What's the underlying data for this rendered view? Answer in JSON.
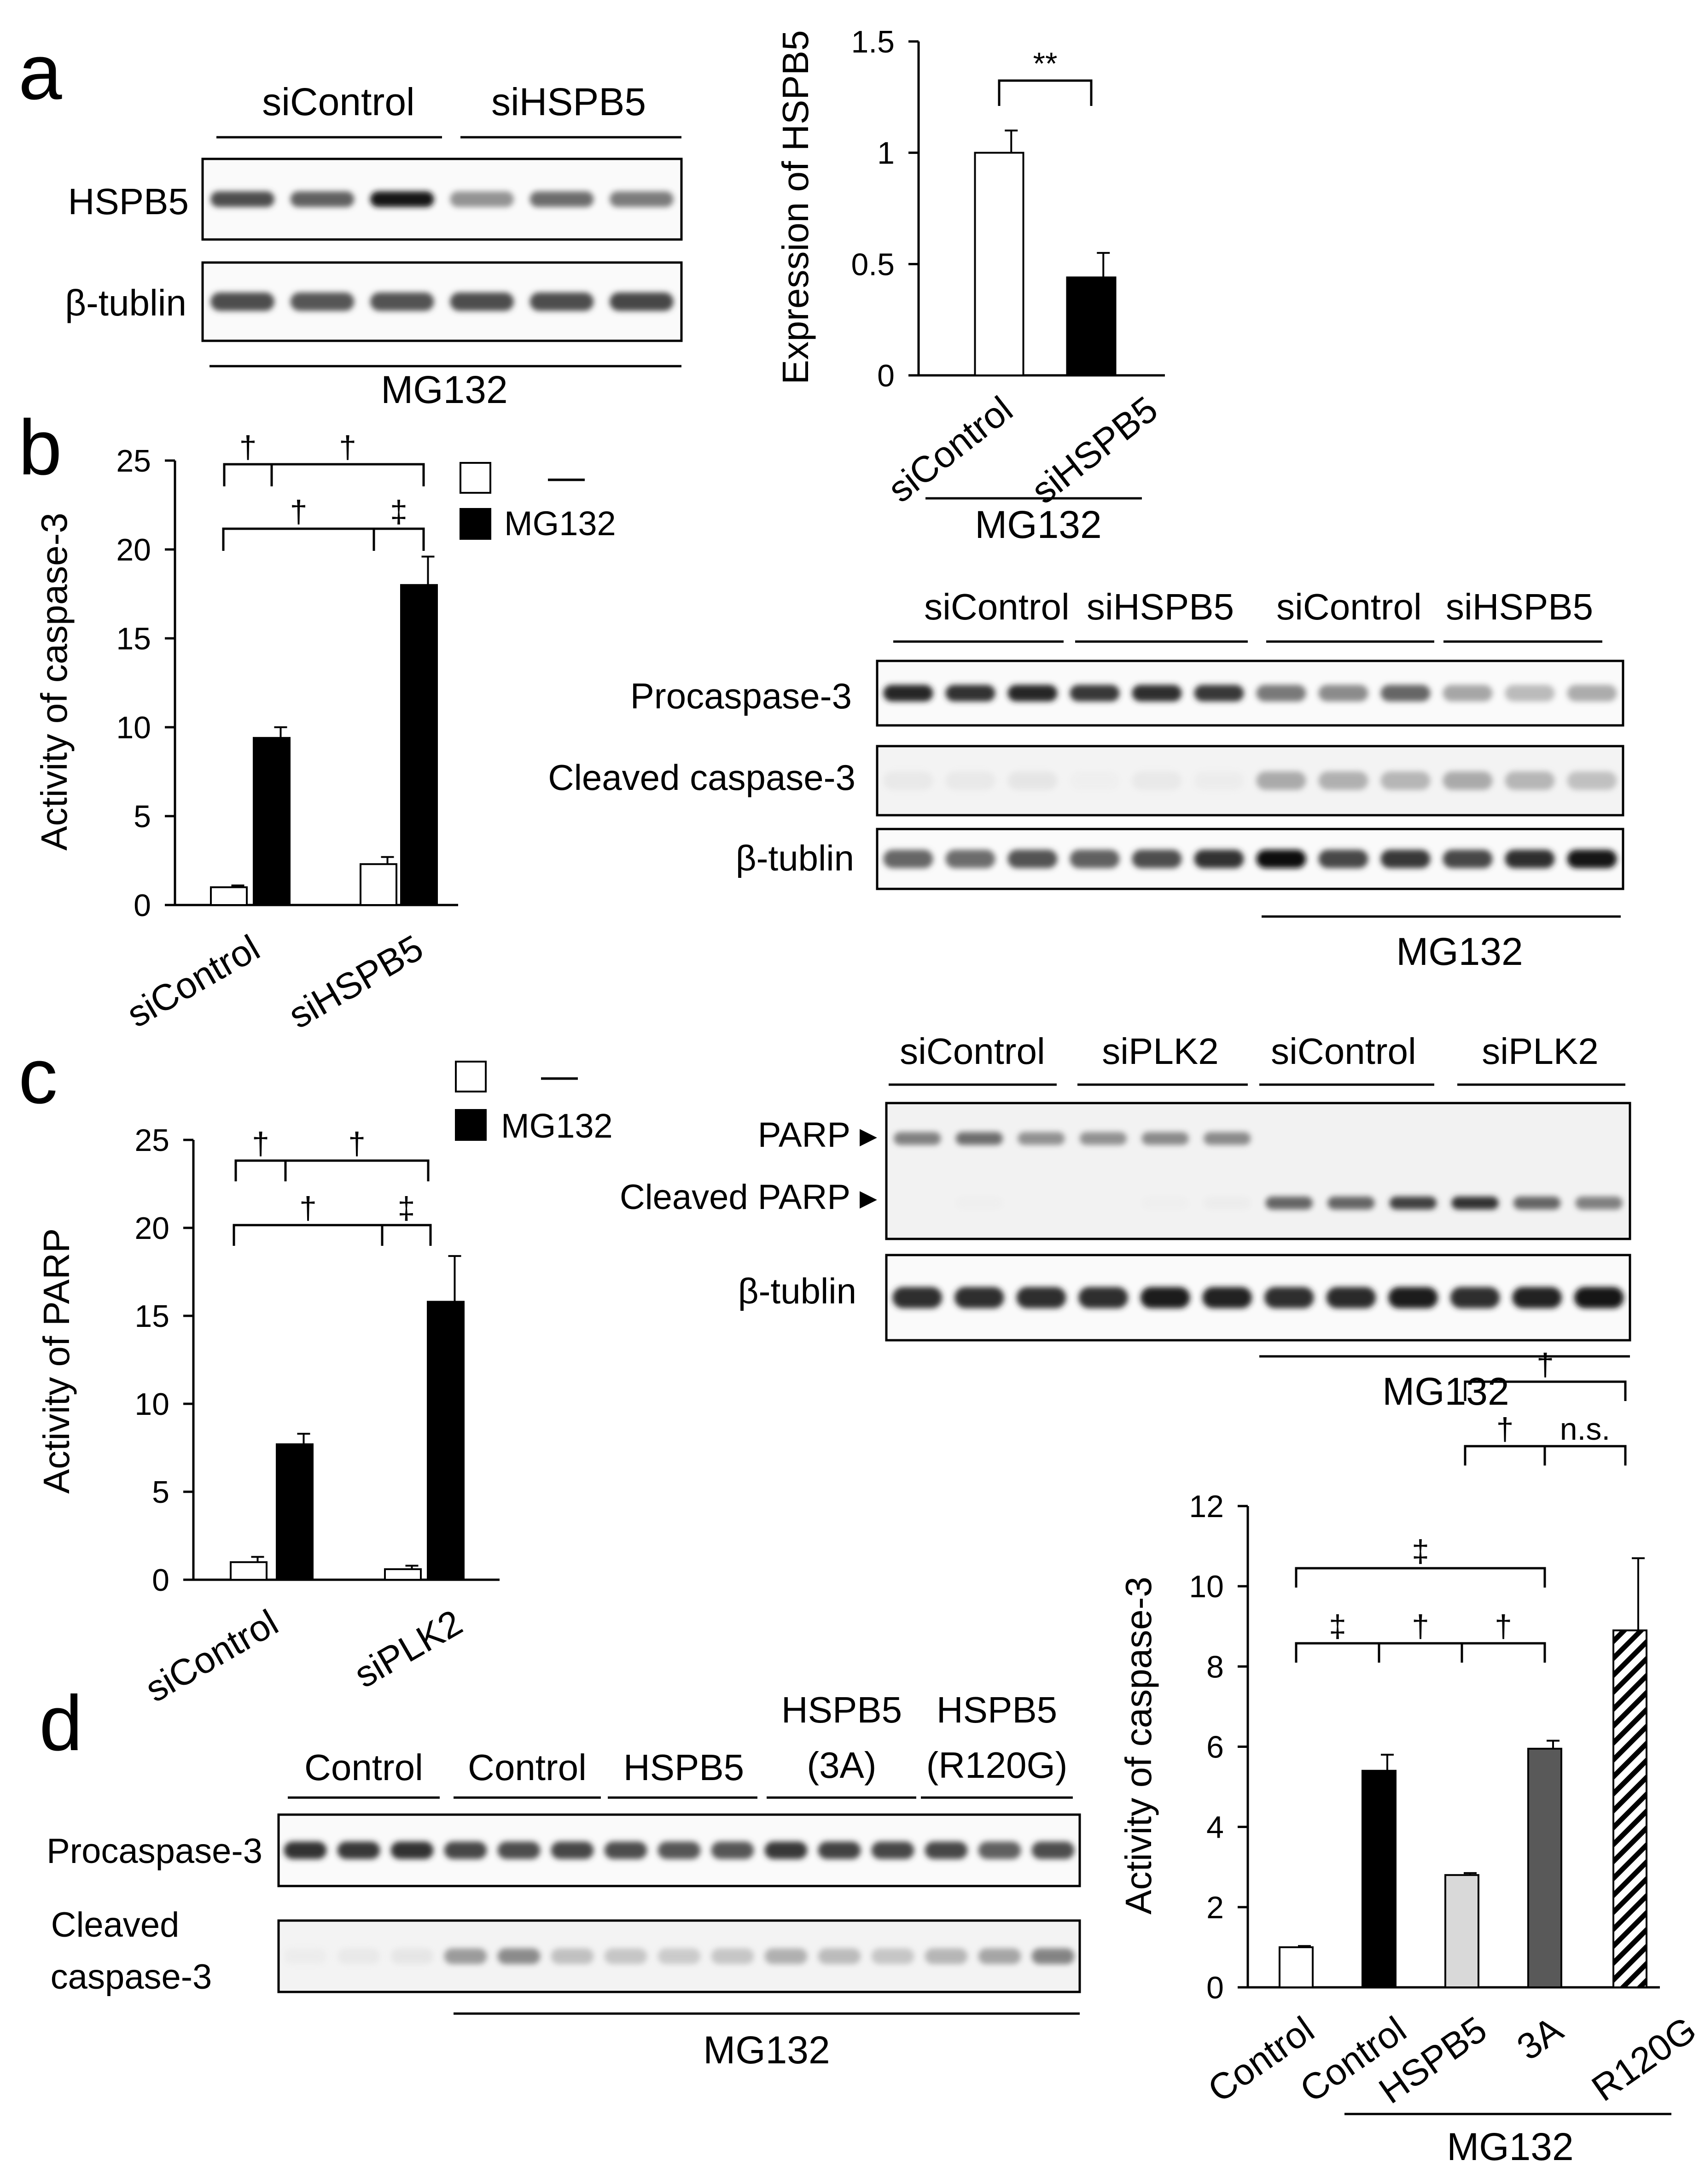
{
  "panels": {
    "a": {
      "letter": "a",
      "blot": {
        "group_labels": [
          "siControl",
          "siHSPB5"
        ],
        "rows": [
          "HSPB5",
          "β-tublin"
        ],
        "treatment": "MG132",
        "row_intensity": [
          [
            0.7,
            0.62,
            0.92,
            0.48,
            0.58,
            0.54
          ],
          [
            0.7,
            0.66,
            0.68,
            0.7,
            0.7,
            0.72
          ]
        ]
      },
      "chart": {
        "ylabel": "Expression of HSPB5",
        "categories": [
          "siControl",
          "siHSPB5"
        ],
        "treatment": "MG132",
        "significance": "**"
      }
    },
    "b": {
      "letter": "b",
      "chart": {
        "ylabel": "Activity of caspase-3",
        "categories": [
          "siControl",
          "siHSPB5"
        ],
        "legend": [
          "—",
          "MG132"
        ],
        "significance": [
          "†",
          "†",
          "†",
          "‡"
        ]
      },
      "blot": {
        "group_labels": [
          "siControl",
          "siHSPB5",
          "siControl",
          "siHSPB5"
        ],
        "rows": [
          "Procaspase-3",
          "Cleaved caspase-3",
          "β-tublin"
        ],
        "treatment": "MG132",
        "row_intensity": [
          [
            0.85,
            0.8,
            0.85,
            0.78,
            0.82,
            0.78,
            0.55,
            0.5,
            0.6,
            0.42,
            0.35,
            0.4
          ],
          [
            0.12,
            0.12,
            0.14,
            0.08,
            0.12,
            0.1,
            0.4,
            0.38,
            0.36,
            0.4,
            0.36,
            0.32
          ],
          [
            0.6,
            0.58,
            0.68,
            0.62,
            0.7,
            0.8,
            0.95,
            0.72,
            0.78,
            0.72,
            0.82,
            0.92
          ]
        ]
      }
    },
    "c": {
      "letter": "c",
      "chart": {
        "ylabel": "Activity of PARP",
        "categories": [
          "siControl",
          "siPLK2"
        ],
        "legend": [
          "—",
          "MG132"
        ],
        "significance": [
          "†",
          "†",
          "†",
          "‡"
        ]
      },
      "blot": {
        "group_labels": [
          "siControl",
          "siPLK2",
          "siControl",
          "siPLK2"
        ],
        "rows": [
          "PARP ▸",
          "Cleaved PARP ▸",
          "β-tublin"
        ],
        "treatment": "MG132",
        "row_intensity": [
          [
            0.55,
            0.6,
            0.5,
            0.5,
            0.52,
            0.52,
            0.05,
            0.05,
            0.05,
            0.05,
            0.05,
            0.05
          ],
          [
            0.05,
            0.08,
            0.05,
            0.05,
            0.08,
            0.1,
            0.62,
            0.62,
            0.75,
            0.8,
            0.62,
            0.55
          ],
          [
            0.82,
            0.82,
            0.82,
            0.82,
            0.88,
            0.86,
            0.82,
            0.84,
            0.88,
            0.82,
            0.86,
            0.92
          ]
        ]
      }
    },
    "d": {
      "letter": "d",
      "blot": {
        "group_labels": [
          "Control",
          "Control",
          "HSPB5",
          "HSPB5\n(3A)",
          "HSPB5\n(R120G)"
        ],
        "rows": [
          "Procaspase-3",
          "Cleaved\ncaspase-3"
        ],
        "treatment": "MG132",
        "row_intensity": [
          [
            0.8,
            0.78,
            0.8,
            0.72,
            0.7,
            0.72,
            0.7,
            0.66,
            0.66,
            0.78,
            0.74,
            0.72,
            0.72,
            0.62,
            0.7
          ],
          [
            0.1,
            0.12,
            0.14,
            0.45,
            0.5,
            0.32,
            0.3,
            0.28,
            0.3,
            0.38,
            0.34,
            0.3,
            0.36,
            0.42,
            0.52
          ]
        ]
      },
      "chart": {
        "ylabel": "Activity of caspase-3",
        "categories": [
          "Control",
          "Control",
          "HSPB5",
          "3A",
          "R120G"
        ],
        "treatment": "MG132",
        "significance": [
          "†",
          "†",
          "n.s.",
          "‡",
          "‡",
          "†",
          "†"
        ]
      }
    }
  },
  "chart_data": [
    {
      "panel": "a",
      "type": "bar",
      "categories": [
        "siControl",
        "siHSPB5"
      ],
      "values": [
        1.0,
        0.44
      ],
      "errors": [
        0.1,
        0.11
      ],
      "colors": [
        "#ffffff",
        "#000000"
      ],
      "ylabel": "Expression of HSPB5",
      "ylim": [
        0,
        1.5
      ],
      "yticks": [
        0,
        0.5,
        1,
        1.5
      ],
      "ytick_labels": [
        "0",
        "0.5",
        "1",
        "1.5"
      ],
      "grid": false
    },
    {
      "panel": "b",
      "type": "bar",
      "categories": [
        "siControl",
        "siHSPB5"
      ],
      "series": [
        {
          "name": "—",
          "color": "#ffffff",
          "values": [
            1.0,
            2.3
          ],
          "errors": [
            0.1,
            0.4
          ]
        },
        {
          "name": "MG132",
          "color": "#000000",
          "values": [
            9.4,
            18.0
          ],
          "errors": [
            0.6,
            1.6
          ]
        }
      ],
      "ylabel": "Activity of caspase-3",
      "ylim": [
        0,
        25
      ],
      "yticks": [
        0,
        5,
        10,
        15,
        20,
        25
      ],
      "ytick_labels": [
        "0",
        "5",
        "10",
        "15",
        "20",
        "25"
      ],
      "legend_position": "top-right",
      "grid": false
    },
    {
      "panel": "c",
      "type": "bar",
      "categories": [
        "siControl",
        "siPLK2"
      ],
      "series": [
        {
          "name": "—",
          "color": "#ffffff",
          "values": [
            1.0,
            0.6
          ],
          "errors": [
            0.3,
            0.2
          ]
        },
        {
          "name": "MG132",
          "color": "#000000",
          "values": [
            7.7,
            15.8
          ],
          "errors": [
            0.6,
            2.6
          ]
        }
      ],
      "ylabel": "Activity of PARP",
      "ylim": [
        0,
        25
      ],
      "yticks": [
        0,
        5,
        10,
        15,
        20,
        25
      ],
      "ytick_labels": [
        "0",
        "5",
        "10",
        "15",
        "20",
        "25"
      ],
      "legend_position": "top-right",
      "grid": false
    },
    {
      "panel": "d",
      "type": "bar",
      "categories": [
        "Control",
        "Control",
        "HSPB5",
        "3A",
        "R120G"
      ],
      "values": [
        1.0,
        5.4,
        2.8,
        5.95,
        8.9
      ],
      "errors": [
        0.03,
        0.4,
        0.05,
        0.2,
        1.8
      ],
      "colors": [
        "#ffffff",
        "#000000",
        "#d9d9d9",
        "#595959",
        "hatched"
      ],
      "ylabel": "Activity of caspase-3",
      "ylim": [
        0,
        12
      ],
      "yticks": [
        0,
        2,
        4,
        6,
        8,
        10,
        12
      ],
      "ytick_labels": [
        "0",
        "2",
        "4",
        "6",
        "8",
        "10",
        "12"
      ],
      "grid": false
    }
  ]
}
